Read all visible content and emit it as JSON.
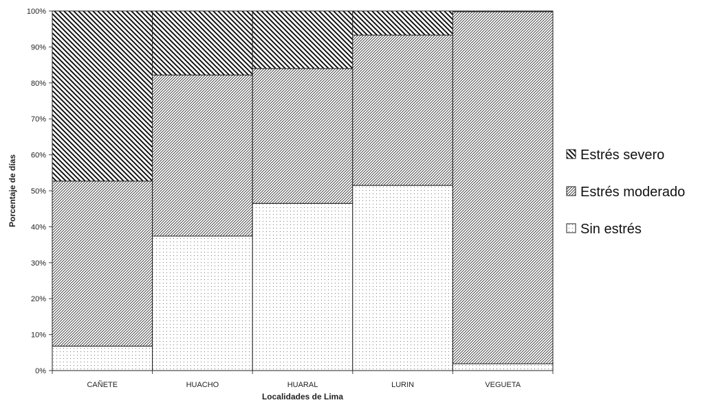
{
  "chart_data": {
    "type": "bar",
    "stacked": true,
    "categories": [
      "CAÑETE",
      "HUACHO",
      "HUARAL",
      "LURIN",
      "VEGUETA"
    ],
    "series": [
      {
        "name": "Sin estrés",
        "values": [
          6.8,
          37.4,
          46.5,
          51.5,
          1.9
        ]
      },
      {
        "name": "Estrés moderado",
        "values": [
          45.9,
          44.8,
          37.5,
          41.8,
          97.9
        ]
      },
      {
        "name": "Estrés severo",
        "values": [
          47.3,
          17.8,
          16.0,
          6.7,
          0.2
        ]
      }
    ],
    "legend_order": [
      "Estrés severo",
      "Estrés moderado",
      "Sin estrés"
    ],
    "xlabel": "Localidades de Lima",
    "ylabel": "Porcentaje de días",
    "ylim": [
      0,
      100
    ],
    "yticks": [
      "0%",
      "10%",
      "20%",
      "30%",
      "40%",
      "50%",
      "60%",
      "70%",
      "80%",
      "90%",
      "100%"
    ],
    "grid": false,
    "legend_position": "right",
    "patterns": {
      "Sin estrés": "dots",
      "Estrés moderado": "fine-diagonal",
      "Estrés severo": "bold-diagonal"
    }
  }
}
